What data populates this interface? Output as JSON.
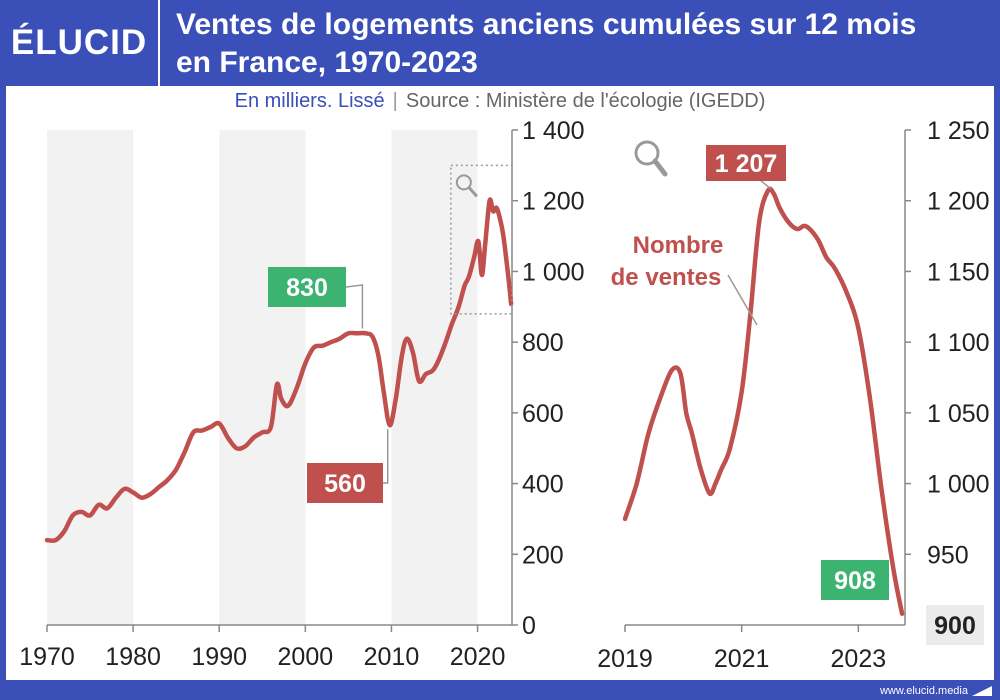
{
  "header": {
    "logo": "ÉLUCID",
    "title_line1": "Ventes de logements anciens cumulées sur 12 mois",
    "title_line2": "en France, 1970-2023",
    "subtitle_unit": "En milliers. Lissé",
    "subtitle_separator": "|",
    "subtitle_source": "Source : Ministère de l'écologie (IGEDD)"
  },
  "footer": {
    "url": "www.elucid.media"
  },
  "colors": {
    "frame": "#3a4fb8",
    "line": "#c0504d",
    "label_green": "#3cb371",
    "label_red": "#c0504d",
    "band": "#f2f2f2"
  },
  "chart_data": [
    {
      "type": "line",
      "title": "",
      "xlabel": "",
      "ylabel": "",
      "xlim": [
        1970,
        2024
      ],
      "ylim": [
        0,
        1400
      ],
      "x_ticks": [
        1970,
        1980,
        1990,
        2000,
        2010,
        2020
      ],
      "x_tick_labels": [
        "1970",
        "1980",
        "1990",
        "2000",
        "2010",
        "2020"
      ],
      "y_ticks": [
        0,
        200,
        400,
        600,
        800,
        1000,
        1200,
        1400
      ],
      "y_tick_labels": [
        "0",
        "200",
        "400",
        "600",
        "800",
        "1 000",
        "1 200",
        "1 400"
      ],
      "y_axis_side": "right",
      "background_bands": [
        [
          1970,
          1980
        ],
        [
          1990,
          2000
        ],
        [
          2010,
          2020
        ]
      ],
      "series": [
        {
          "x": [
            1970,
            1971,
            1972,
            1973,
            1974,
            1975,
            1976,
            1977,
            1978,
            1979,
            1980,
            1981,
            1982,
            1983,
            1984,
            1985,
            1986,
            1987,
            1988,
            1989,
            1990,
            1991,
            1992,
            1993,
            1994,
            1995,
            1996,
            1996.7,
            1997.2,
            1998,
            1999,
            2000,
            2001,
            2002,
            2003,
            2004,
            2005,
            2006,
            2007,
            2007.8,
            2008.5,
            2009.1,
            2009.8,
            2010.5,
            2011.2,
            2011.8,
            2012.5,
            2013.2,
            2014,
            2014.8,
            2015.5,
            2016.3,
            2017,
            2017.8,
            2018.5,
            2019,
            2019.6,
            2020.1,
            2020.5,
            2020.9,
            2021.4,
            2021.8,
            2022.2,
            2022.6,
            2023,
            2023.5,
            2023.9
          ],
          "y": [
            240,
            240,
            265,
            310,
            320,
            310,
            340,
            330,
            360,
            385,
            375,
            360,
            370,
            390,
            410,
            440,
            490,
            545,
            550,
            560,
            570,
            530,
            500,
            505,
            530,
            545,
            560,
            680,
            640,
            620,
            670,
            740,
            785,
            790,
            800,
            810,
            825,
            825,
            825,
            815,
            760,
            660,
            565,
            640,
            760,
            810,
            770,
            690,
            710,
            720,
            750,
            800,
            850,
            900,
            960,
            985,
            1040,
            1085,
            990,
            1080,
            1200,
            1170,
            1180,
            1150,
            1100,
            1000,
            908
          ]
        }
      ],
      "annotations": [
        {
          "text": "830",
          "x": 2005,
          "y": 830,
          "style": "green"
        },
        {
          "text": "560",
          "x": 2009.8,
          "y": 565,
          "style": "red"
        }
      ]
    },
    {
      "type": "line",
      "title": "",
      "xlabel": "",
      "ylabel": "",
      "xlim": [
        2019,
        2023.8
      ],
      "ylim": [
        900,
        1250
      ],
      "x_ticks": [
        2019,
        2021,
        2023
      ],
      "x_tick_labels": [
        "2019",
        "2021",
        "2023"
      ],
      "y_ticks": [
        900,
        950,
        1000,
        1050,
        1100,
        1150,
        1200,
        1250
      ],
      "y_tick_labels": [
        "900",
        "950",
        "1 000",
        "1 050",
        "1 100",
        "1 150",
        "1 200",
        "1 250"
      ],
      "y_axis_side": "right",
      "series": [
        {
          "name": "Nombre de ventes",
          "x": [
            2019,
            2019.2,
            2019.4,
            2019.6,
            2019.8,
            2019.95,
            2020.05,
            2020.15,
            2020.3,
            2020.45,
            2020.55,
            2020.65,
            2020.8,
            2021.0,
            2021.15,
            2021.3,
            2021.45,
            2021.55,
            2021.65,
            2021.8,
            2021.95,
            2022.1,
            2022.3,
            2022.45,
            2022.6,
            2022.8,
            2023.0,
            2023.2,
            2023.4,
            2023.6,
            2023.75
          ],
          "y": [
            975,
            1000,
            1035,
            1060,
            1080,
            1078,
            1050,
            1035,
            1010,
            993,
            1000,
            1010,
            1025,
            1065,
            1120,
            1185,
            1207,
            1205,
            1195,
            1185,
            1180,
            1182,
            1173,
            1160,
            1152,
            1135,
            1110,
            1060,
            995,
            940,
            908
          ]
        }
      ],
      "annotations": [
        {
          "text": "1 207",
          "x": 2021.5,
          "y": 1207,
          "style": "red"
        },
        {
          "text": "908",
          "x": 2023.75,
          "y": 908,
          "style": "green"
        },
        {
          "text": "900",
          "x": 2023.8,
          "y": 900,
          "style": "grey-box"
        },
        {
          "text": "Nombre",
          "style": "series-label"
        },
        {
          "text": "de ventes",
          "style": "series-label"
        }
      ]
    }
  ]
}
